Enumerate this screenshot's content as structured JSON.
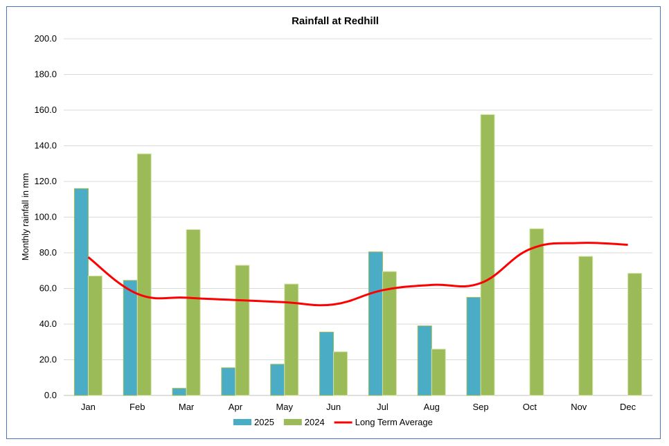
{
  "chart_data": {
    "type": "bar",
    "title": "Rainfall at Redhill",
    "xlabel": "",
    "ylabel": "Monthly rainfall in mm",
    "ylim": [
      0,
      200
    ],
    "y_ticks": [
      "0.0",
      "20.0",
      "40.0",
      "60.0",
      "80.0",
      "100.0",
      "120.0",
      "140.0",
      "160.0",
      "180.0",
      "200.0"
    ],
    "categories": [
      "Jan",
      "Feb",
      "Mar",
      "Apr",
      "May",
      "Jun",
      "Jul",
      "Aug",
      "Sep",
      "Oct",
      "Nov",
      "Dec"
    ],
    "series": [
      {
        "name": "2025",
        "type": "bar",
        "color": "#4bacc6",
        "values": [
          116.0,
          64.5,
          4.0,
          15.5,
          17.5,
          35.5,
          80.5,
          39.0,
          55.0,
          null,
          null,
          null
        ]
      },
      {
        "name": "2024",
        "type": "bar",
        "color": "#9bbb59",
        "values": [
          67.0,
          135.5,
          93.0,
          73.0,
          62.5,
          24.5,
          69.5,
          26.0,
          157.5,
          93.5,
          78.0,
          68.5
        ]
      },
      {
        "name": "Long Term Average",
        "type": "line",
        "color": "#ff0000",
        "values": [
          77.5,
          57.0,
          54.8,
          53.5,
          52.3,
          51.0,
          59.0,
          62.0,
          63.0,
          82.0,
          85.5,
          84.5
        ]
      }
    ],
    "grid": true,
    "legend": "bottom"
  }
}
